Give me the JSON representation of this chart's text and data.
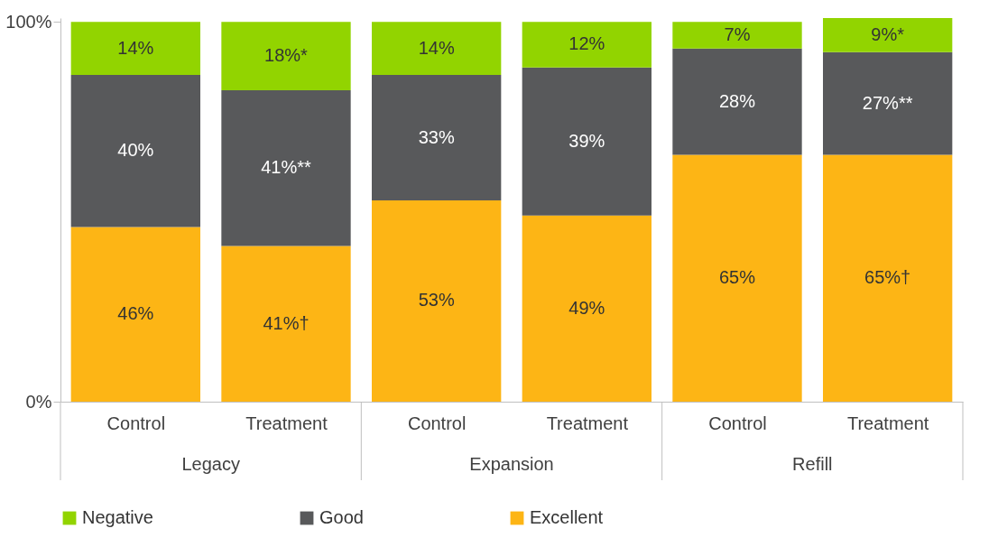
{
  "chart_data": {
    "type": "bar",
    "stacked": true,
    "categories": [
      "Control",
      "Treatment",
      "Control",
      "Treatment",
      "Control",
      "Treatment"
    ],
    "annotations": [
      "Legacy",
      "Expansion",
      "Refill"
    ],
    "series": [
      {
        "name": "Excellent",
        "color": "#fdb515",
        "values": [
          46,
          41,
          53,
          49,
          65,
          65
        ],
        "value_labels": [
          "46%",
          "41%†",
          "53%",
          "49%",
          "65%",
          "65%†"
        ]
      },
      {
        "name": "Good",
        "color": "#58595b",
        "values": [
          40,
          41,
          33,
          39,
          28,
          27
        ],
        "value_labels": [
          "40%",
          "41%**",
          "33%",
          "39%",
          "28%",
          "27%**"
        ]
      },
      {
        "name": "Negative",
        "color": "#92d400",
        "values": [
          14,
          18,
          14,
          12,
          7,
          9
        ],
        "value_labels": [
          "14%",
          "18%*",
          "14%",
          "12%",
          "7%",
          "9%*"
        ]
      }
    ],
    "ylim": [
      0,
      101
    ],
    "yticks": [
      {
        "value": 0,
        "label": "0%"
      },
      {
        "value": 100,
        "label": "100%"
      }
    ],
    "grid": false,
    "legend": "bottom"
  }
}
